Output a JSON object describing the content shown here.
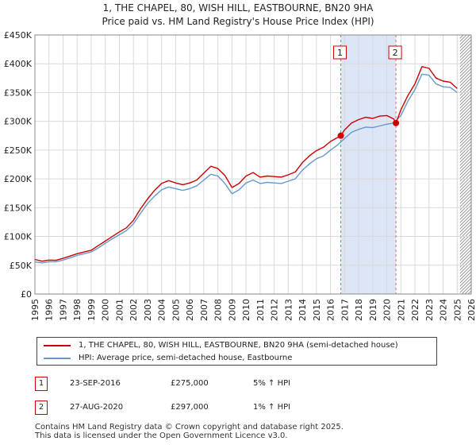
{
  "chart_data": {
    "type": "line",
    "title": "1, THE CHAPEL, 80, WISH HILL, EASTBOURNE, BN20 9HA",
    "subtitle": "Price paid vs. HM Land Registry's House Price Index (HPI)",
    "xlim": [
      1995,
      2026
    ],
    "ylim": [
      0,
      450000
    ],
    "x_ticks": [
      "1995",
      "1996",
      "1997",
      "1998",
      "1999",
      "2000",
      "2001",
      "2002",
      "2003",
      "2004",
      "2005",
      "2006",
      "2007",
      "2008",
      "2009",
      "2010",
      "2011",
      "2012",
      "2013",
      "2014",
      "2015",
      "2016",
      "2017",
      "2018",
      "2019",
      "2020",
      "2021",
      "2022",
      "2023",
      "2024",
      "2025",
      "2026"
    ],
    "y_ticks": [
      {
        "value": 0,
        "label": "£0"
      },
      {
        "value": 50000,
        "label": "£50K"
      },
      {
        "value": 100000,
        "label": "£100K"
      },
      {
        "value": 150000,
        "label": "£150K"
      },
      {
        "value": 200000,
        "label": "£200K"
      },
      {
        "value": 250000,
        "label": "£250K"
      },
      {
        "value": 300000,
        "label": "£300K"
      },
      {
        "value": 350000,
        "label": "£350K"
      },
      {
        "value": 400000,
        "label": "£400K"
      },
      {
        "value": 450000,
        "label": "£450K"
      }
    ],
    "grid": true,
    "legend_position": "below",
    "shaded_period": {
      "start": 2016.73,
      "end": 2020.65,
      "color": "#dde6f7"
    },
    "hatch_from": 2025.2,
    "series": [
      {
        "name": "1, THE CHAPEL, 80, WISH HILL, EASTBOURNE, BN20 9HA (semi-detached house)",
        "color": "#cc0000",
        "points": [
          [
            1995.0,
            60000
          ],
          [
            1995.5,
            57000
          ],
          [
            1996.0,
            59000
          ],
          [
            1996.5,
            58500
          ],
          [
            1997.0,
            62000
          ],
          [
            1997.5,
            66000
          ],
          [
            1998.0,
            70000
          ],
          [
            1998.5,
            73000
          ],
          [
            1999.0,
            76000
          ],
          [
            1999.5,
            84000
          ],
          [
            2000.0,
            92000
          ],
          [
            2000.5,
            100000
          ],
          [
            2001.0,
            108000
          ],
          [
            2001.5,
            115000
          ],
          [
            2002.0,
            128000
          ],
          [
            2002.5,
            148000
          ],
          [
            2003.0,
            165000
          ],
          [
            2003.5,
            180000
          ],
          [
            2004.0,
            192000
          ],
          [
            2004.5,
            197000
          ],
          [
            2005.0,
            193000
          ],
          [
            2005.5,
            190000
          ],
          [
            2006.0,
            193000
          ],
          [
            2006.5,
            198000
          ],
          [
            2007.0,
            210000
          ],
          [
            2007.5,
            222000
          ],
          [
            2008.0,
            218000
          ],
          [
            2008.5,
            206000
          ],
          [
            2009.0,
            185000
          ],
          [
            2009.5,
            192000
          ],
          [
            2010.0,
            205000
          ],
          [
            2010.5,
            211000
          ],
          [
            2011.0,
            203000
          ],
          [
            2011.5,
            205000
          ],
          [
            2012.0,
            204000
          ],
          [
            2012.5,
            203000
          ],
          [
            2013.0,
            207000
          ],
          [
            2013.5,
            212000
          ],
          [
            2014.0,
            228000
          ],
          [
            2014.5,
            240000
          ],
          [
            2015.0,
            249000
          ],
          [
            2015.5,
            255000
          ],
          [
            2016.0,
            265000
          ],
          [
            2016.5,
            272000
          ],
          [
            2016.73,
            275000
          ],
          [
            2017.0,
            285000
          ],
          [
            2017.5,
            297000
          ],
          [
            2018.0,
            303000
          ],
          [
            2018.5,
            307000
          ],
          [
            2019.0,
            305000
          ],
          [
            2019.5,
            309000
          ],
          [
            2020.0,
            310000
          ],
          [
            2020.5,
            304000
          ],
          [
            2020.65,
            297000
          ],
          [
            2021.0,
            320000
          ],
          [
            2021.5,
            345000
          ],
          [
            2022.0,
            365000
          ],
          [
            2022.5,
            395000
          ],
          [
            2023.0,
            392000
          ],
          [
            2023.5,
            375000
          ],
          [
            2024.0,
            370000
          ],
          [
            2024.5,
            368000
          ],
          [
            2025.0,
            357000
          ]
        ]
      },
      {
        "name": "HPI: Average price, semi-detached house, Eastbourne",
        "color": "#6699cc",
        "points": [
          [
            1995.0,
            56000
          ],
          [
            1995.5,
            54000
          ],
          [
            1996.0,
            56000
          ],
          [
            1996.5,
            56000
          ],
          [
            1997.0,
            59000
          ],
          [
            1997.5,
            63000
          ],
          [
            1998.0,
            67000
          ],
          [
            1998.5,
            70000
          ],
          [
            1999.0,
            73000
          ],
          [
            1999.5,
            80000
          ],
          [
            2000.0,
            88000
          ],
          [
            2000.5,
            96000
          ],
          [
            2001.0,
            103000
          ],
          [
            2001.5,
            110000
          ],
          [
            2002.0,
            122000
          ],
          [
            2002.5,
            140000
          ],
          [
            2003.0,
            157000
          ],
          [
            2003.5,
            170000
          ],
          [
            2004.0,
            181000
          ],
          [
            2004.5,
            186000
          ],
          [
            2005.0,
            183000
          ],
          [
            2005.5,
            180000
          ],
          [
            2006.0,
            183000
          ],
          [
            2006.5,
            188000
          ],
          [
            2007.0,
            198000
          ],
          [
            2007.5,
            208000
          ],
          [
            2008.0,
            205000
          ],
          [
            2008.5,
            192000
          ],
          [
            2009.0,
            174000
          ],
          [
            2009.5,
            181000
          ],
          [
            2010.0,
            193000
          ],
          [
            2010.5,
            198000
          ],
          [
            2011.0,
            192000
          ],
          [
            2011.5,
            194000
          ],
          [
            2012.0,
            193000
          ],
          [
            2012.5,
            192000
          ],
          [
            2013.0,
            196000
          ],
          [
            2013.5,
            200000
          ],
          [
            2014.0,
            215000
          ],
          [
            2014.5,
            226000
          ],
          [
            2015.0,
            235000
          ],
          [
            2015.5,
            240000
          ],
          [
            2016.0,
            250000
          ],
          [
            2016.5,
            259000
          ],
          [
            2017.0,
            270000
          ],
          [
            2017.5,
            281000
          ],
          [
            2018.0,
            286000
          ],
          [
            2018.5,
            290000
          ],
          [
            2019.0,
            289000
          ],
          [
            2019.5,
            292000
          ],
          [
            2020.0,
            295000
          ],
          [
            2020.5,
            297000
          ],
          [
            2021.0,
            310000
          ],
          [
            2021.5,
            335000
          ],
          [
            2022.0,
            355000
          ],
          [
            2022.5,
            382000
          ],
          [
            2023.0,
            380000
          ],
          [
            2023.5,
            365000
          ],
          [
            2024.0,
            360000
          ],
          [
            2024.5,
            359000
          ],
          [
            2025.0,
            350000
          ]
        ]
      }
    ],
    "markers": [
      {
        "label": "1",
        "x": 2016.73,
        "y": 275000
      },
      {
        "label": "2",
        "x": 2020.65,
        "y": 297000
      }
    ]
  },
  "sales": [
    {
      "num": "1",
      "date": "23-SEP-2016",
      "price": "£275,000",
      "hpi": "5% ↑ HPI"
    },
    {
      "num": "2",
      "date": "27-AUG-2020",
      "price": "£297,000",
      "hpi": "1% ↑ HPI"
    }
  ],
  "footer": {
    "line1": "Contains HM Land Registry data © Crown copyright and database right 2025.",
    "line2": "This data is licensed under the Open Government Licence v3.0."
  }
}
